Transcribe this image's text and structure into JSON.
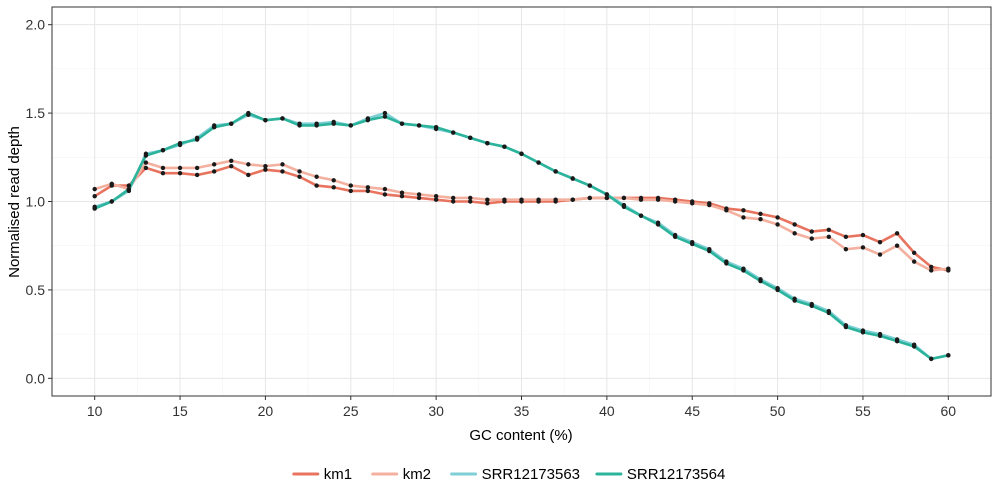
{
  "chart_data": {
    "type": "line",
    "title": "",
    "xlabel": "GC content (%)",
    "ylabel": "Normalised read depth",
    "xlim": [
      7.5,
      62.5
    ],
    "ylim": [
      -0.1,
      2.1
    ],
    "x_ticks": [
      10,
      15,
      20,
      25,
      30,
      35,
      40,
      45,
      50,
      55,
      60
    ],
    "y_ticks": [
      0.0,
      0.5,
      1.0,
      1.5,
      2.0
    ],
    "x_tick_labels": [
      "10",
      "15",
      "20",
      "25",
      "30",
      "35",
      "40",
      "45",
      "50",
      "55",
      "60"
    ],
    "y_tick_labels": [
      "0.0",
      "0.5",
      "1.0",
      "1.5",
      "2.0"
    ],
    "grid": true,
    "legend_position": "bottom",
    "x": [
      10,
      11,
      12,
      13,
      14,
      15,
      16,
      17,
      18,
      19,
      20,
      21,
      22,
      23,
      24,
      25,
      26,
      27,
      28,
      29,
      30,
      31,
      32,
      33,
      34,
      35,
      36,
      37,
      38,
      39,
      40,
      41,
      42,
      43,
      44,
      45,
      46,
      47,
      48,
      49,
      50,
      51,
      52,
      53,
      54,
      55,
      56,
      57,
      58,
      59,
      60
    ],
    "series": [
      {
        "name": "km1",
        "color": "#e8735f",
        "values": [
          1.03,
          1.09,
          1.09,
          1.19,
          1.16,
          1.16,
          1.15,
          1.17,
          1.2,
          1.15,
          1.18,
          1.17,
          1.14,
          1.09,
          1.08,
          1.06,
          1.06,
          1.04,
          1.03,
          1.02,
          1.01,
          1.0,
          1.0,
          0.99,
          1.0,
          1.0,
          1.0,
          1.0,
          1.01,
          1.02,
          1.02,
          1.02,
          1.02,
          1.02,
          1.01,
          1.0,
          0.99,
          0.96,
          0.95,
          0.93,
          0.91,
          0.87,
          0.83,
          0.84,
          0.8,
          0.81,
          0.77,
          0.82,
          0.71,
          0.63,
          0.61
        ]
      },
      {
        "name": "km2",
        "color": "#f4b09f",
        "values": [
          1.07,
          1.1,
          1.07,
          1.22,
          1.19,
          1.19,
          1.19,
          1.21,
          1.23,
          1.21,
          1.2,
          1.21,
          1.17,
          1.14,
          1.12,
          1.09,
          1.08,
          1.07,
          1.05,
          1.04,
          1.03,
          1.02,
          1.02,
          1.01,
          1.01,
          1.01,
          1.01,
          1.01,
          1.01,
          1.02,
          1.02,
          1.02,
          1.01,
          1.01,
          1.0,
          0.99,
          0.98,
          0.95,
          0.91,
          0.9,
          0.87,
          0.82,
          0.79,
          0.8,
          0.73,
          0.74,
          0.7,
          0.75,
          0.66,
          0.61,
          0.62
        ]
      },
      {
        "name": "SRR12173563",
        "color": "#7fcfd6",
        "values": [
          0.97,
          1.0,
          1.06,
          1.27,
          1.29,
          1.32,
          1.36,
          1.43,
          1.44,
          1.49,
          1.46,
          1.47,
          1.44,
          1.44,
          1.45,
          1.43,
          1.47,
          1.5,
          1.44,
          1.43,
          1.41,
          1.39,
          1.36,
          1.33,
          1.31,
          1.27,
          1.22,
          1.17,
          1.13,
          1.09,
          1.04,
          0.98,
          0.92,
          0.88,
          0.81,
          0.77,
          0.73,
          0.66,
          0.62,
          0.56,
          0.51,
          0.45,
          0.42,
          0.38,
          0.3,
          0.27,
          0.25,
          0.22,
          0.19,
          0.11,
          0.13
        ]
      },
      {
        "name": "SRR12173564",
        "color": "#2cb39c",
        "values": [
          0.96,
          1.0,
          1.07,
          1.26,
          1.29,
          1.33,
          1.35,
          1.42,
          1.44,
          1.5,
          1.46,
          1.47,
          1.43,
          1.43,
          1.44,
          1.43,
          1.46,
          1.48,
          1.44,
          1.43,
          1.42,
          1.39,
          1.36,
          1.33,
          1.31,
          1.27,
          1.22,
          1.17,
          1.13,
          1.09,
          1.04,
          0.97,
          0.92,
          0.87,
          0.8,
          0.76,
          0.72,
          0.65,
          0.61,
          0.55,
          0.5,
          0.44,
          0.41,
          0.37,
          0.29,
          0.26,
          0.24,
          0.21,
          0.18,
          0.11,
          0.13
        ]
      }
    ]
  },
  "style": {
    "panel_border": "#333333",
    "grid_major": "#e6e6e6",
    "grid_minor": "#f3f3f3",
    "point_color": "#1a1a1a",
    "tick_color": "#333333"
  }
}
